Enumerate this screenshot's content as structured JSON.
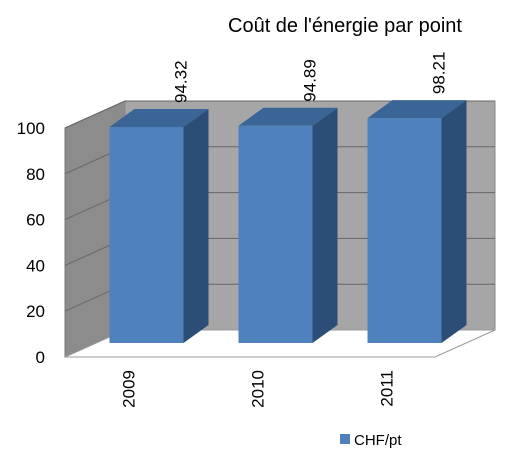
{
  "chart_data": {
    "type": "bar3d",
    "title": "Coût de l'énergie par point",
    "categories": [
      "2009",
      "2010",
      "2011"
    ],
    "series": [
      {
        "name": "CHF/pt",
        "color": "#4f81bd",
        "values": [
          94.32,
          94.89,
          98.21
        ]
      }
    ],
    "ylim": [
      0,
      100
    ],
    "yticks": [
      0,
      20,
      40,
      60,
      80,
      100
    ],
    "grid": true,
    "legend": "bottom-right"
  }
}
